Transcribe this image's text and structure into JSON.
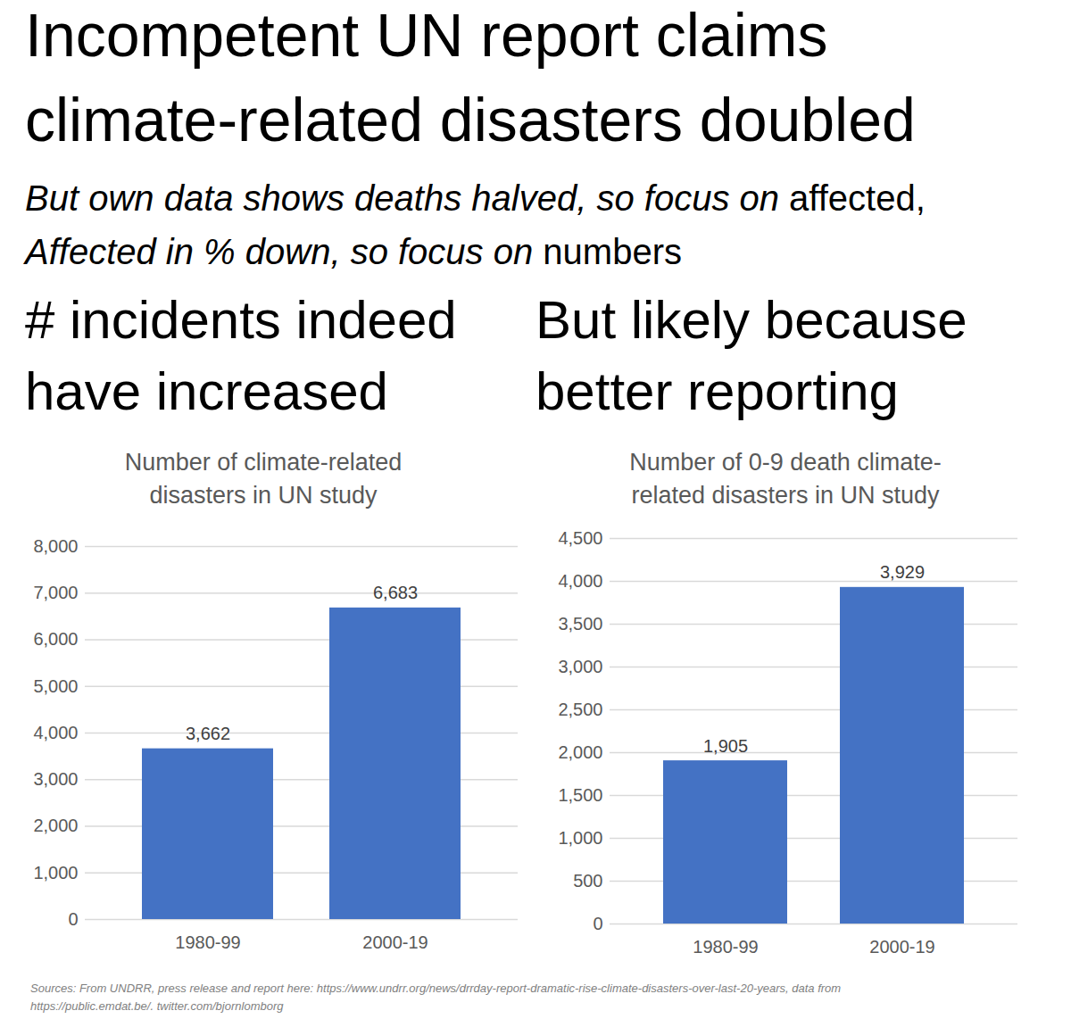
{
  "title_lines": [
    "Incompetent UN report claims",
    "climate-related disasters doubled"
  ],
  "subtitle_lines": [
    [
      "But own data shows deaths halved, so focus on ",
      "affected,"
    ],
    [
      "Affected in % down, so focus on ",
      "numbers"
    ]
  ],
  "panel_headings": [
    [
      "# incidents indeed",
      "have increased"
    ],
    [
      "But likely because",
      "better reporting"
    ]
  ],
  "chart_data": [
    {
      "type": "bar",
      "title": "Number of climate-related disasters in UN study",
      "categories": [
        "1980-99",
        "2000-19"
      ],
      "values": [
        3662,
        6683
      ],
      "value_labels": [
        "3,662",
        "6,683"
      ],
      "color": "#4472c4",
      "ylim": [
        0,
        8000
      ],
      "yticks": [
        0,
        {
          "value": 1000,
          "label": "1,000"
        },
        {
          "value": 2000,
          "label": "2,000"
        },
        {
          "value": 3000,
          "label": "3,000"
        },
        {
          "value": 4000,
          "label": "4,000"
        },
        {
          "value": 5000,
          "label": "5,000"
        },
        {
          "value": 6000,
          "label": "6,000"
        },
        {
          "value": 7000,
          "label": "7,000"
        },
        {
          "value": 8000,
          "label": "8,000"
        }
      ],
      "grid": true,
      "data_labels": true
    },
    {
      "type": "bar",
      "title": "Number of 0-9 death climate-related disasters in UN study",
      "categories": [
        "1980-99",
        "2000-19"
      ],
      "values": [
        1905,
        3929
      ],
      "value_labels": [
        "1,905",
        "3,929"
      ],
      "color": "#4472c4",
      "ylim": [
        0,
        4500
      ],
      "yticks": [
        0,
        500,
        {
          "value": 1000,
          "label": "1,000"
        },
        {
          "value": 1500,
          "label": "1,500"
        },
        {
          "value": 2000,
          "label": "2,000"
        },
        {
          "value": 2500,
          "label": "2,500"
        },
        {
          "value": 3000,
          "label": "3,000"
        },
        {
          "value": 3500,
          "label": "3,500"
        },
        {
          "value": 4000,
          "label": "4,000"
        },
        {
          "value": 4500,
          "label": "4,500"
        }
      ],
      "grid": true,
      "data_labels": true
    }
  ],
  "source_lines": [
    "Sources: From UNDRR, press release and report here: https://www.undrr.org/news/drrday-report-dramatic-rise-climate-disasters-over-last-20-years, data from",
    "https://public.emdat.be/. twitter.com/bjornlomborg"
  ]
}
